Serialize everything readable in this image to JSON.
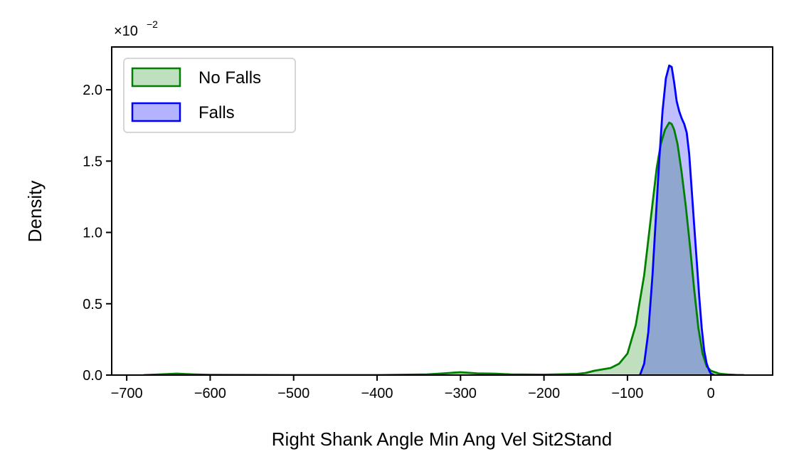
{
  "chart_data": {
    "type": "area",
    "xlabel": "Right Shank Angle Min Ang Vel Sit2Stand",
    "ylabel": "Density",
    "offset_label": "×10",
    "offset_exponent": "−2",
    "xlim": [
      -718,
      74
    ],
    "ylim": [
      0,
      2.3
    ],
    "xticks": [
      -700,
      -600,
      -500,
      -400,
      -300,
      -200,
      -100,
      0
    ],
    "xtick_labels": [
      "−700",
      "−600",
      "−500",
      "−400",
      "−300",
      "−200",
      "−100",
      "0"
    ],
    "yticks": [
      0,
      0.5,
      1.0,
      1.5,
      2.0
    ],
    "ytick_labels": [
      "0.0",
      "0.5",
      "1.0",
      "1.5",
      "2.0"
    ],
    "grid": false,
    "legend_position": "top-left",
    "series": [
      {
        "name": "No Falls",
        "color": "#008000",
        "fill": "#bfe0bf",
        "x": [
          -680,
          -660,
          -640,
          -620,
          -600,
          -560,
          -500,
          -400,
          -340,
          -320,
          -300,
          -280,
          -260,
          -240,
          -200,
          -160,
          -150,
          -140,
          -130,
          -120,
          -110,
          -100,
          -90,
          -80,
          -70,
          -65,
          -60,
          -55,
          -50,
          -47,
          -44,
          -40,
          -35,
          -30,
          -25,
          -20,
          -15,
          -10,
          -5,
          0,
          10,
          20,
          30,
          40
        ],
        "y": [
          0.0,
          0.005,
          0.01,
          0.005,
          0.002,
          0.001,
          0.0,
          0.0,
          0.005,
          0.012,
          0.02,
          0.012,
          0.01,
          0.005,
          0.003,
          0.008,
          0.015,
          0.03,
          0.04,
          0.05,
          0.08,
          0.15,
          0.35,
          0.7,
          1.2,
          1.45,
          1.62,
          1.72,
          1.77,
          1.76,
          1.72,
          1.62,
          1.42,
          1.18,
          0.9,
          0.6,
          0.33,
          0.15,
          0.06,
          0.03,
          0.01,
          0.004,
          0.001,
          0.0
        ]
      },
      {
        "name": "Falls",
        "color": "#0000ff",
        "fill": "#b3b3ff",
        "x": [
          -85,
          -80,
          -75,
          -70,
          -66,
          -62,
          -58,
          -54,
          -50,
          -47,
          -44,
          -41,
          -38,
          -35,
          -32,
          -29,
          -26,
          -23,
          -20,
          -17,
          -14,
          -11,
          -8,
          -5,
          -2,
          0,
          4
        ],
        "y": [
          0.0,
          0.08,
          0.3,
          0.7,
          1.1,
          1.5,
          1.85,
          2.08,
          2.17,
          2.16,
          2.05,
          1.92,
          1.85,
          1.8,
          1.76,
          1.7,
          1.55,
          1.3,
          1.05,
          0.8,
          0.55,
          0.33,
          0.17,
          0.08,
          0.03,
          0.01,
          0.0
        ]
      }
    ]
  }
}
